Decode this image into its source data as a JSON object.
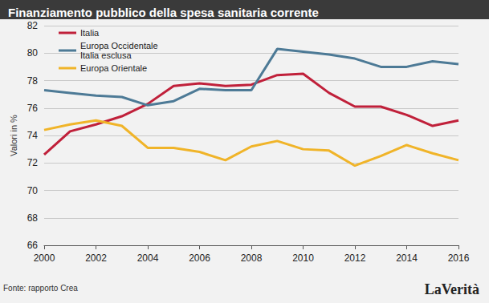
{
  "chart_data": {
    "type": "line",
    "title": "Finanziamento pubblico della spesa sanitaria corrente",
    "y_label": "Valori in %",
    "source": "Fonte: rapporto Crea",
    "credit": "LaVerità",
    "x": [
      2000,
      2001,
      2002,
      2003,
      2004,
      2005,
      2006,
      2007,
      2008,
      2009,
      2010,
      2011,
      2012,
      2013,
      2014,
      2015,
      2016
    ],
    "series": [
      {
        "name": "Italia",
        "color": "#c0203a",
        "values": [
          72.6,
          74.3,
          74.8,
          75.4,
          76.3,
          77.6,
          77.8,
          77.6,
          77.7,
          78.4,
          78.5,
          77.1,
          76.1,
          76.1,
          75.5,
          74.7,
          75.1
        ]
      },
      {
        "name": "Europa Occidentale\nItalia esclusa",
        "color": "#4d7a96",
        "values": [
          77.3,
          77.1,
          76.9,
          76.8,
          76.2,
          76.5,
          77.4,
          77.3,
          77.3,
          80.3,
          80.1,
          79.9,
          79.6,
          79.0,
          79.0,
          79.4,
          79.2
        ]
      },
      {
        "name": "Europa Orientale",
        "color": "#f0b429",
        "values": [
          74.4,
          74.8,
          75.1,
          74.7,
          73.1,
          73.1,
          72.8,
          72.2,
          73.2,
          73.6,
          73.0,
          72.9,
          71.8,
          72.5,
          73.3,
          72.7,
          72.2
        ]
      }
    ],
    "xlim": [
      2000,
      2016
    ],
    "xticks": [
      2000,
      2002,
      2004,
      2006,
      2008,
      2010,
      2012,
      2014,
      2016
    ],
    "ylim": [
      66,
      82
    ],
    "yticks": [
      66,
      68,
      70,
      72,
      74,
      76,
      78,
      80,
      82
    ],
    "grid": true,
    "legend": "upper left"
  }
}
